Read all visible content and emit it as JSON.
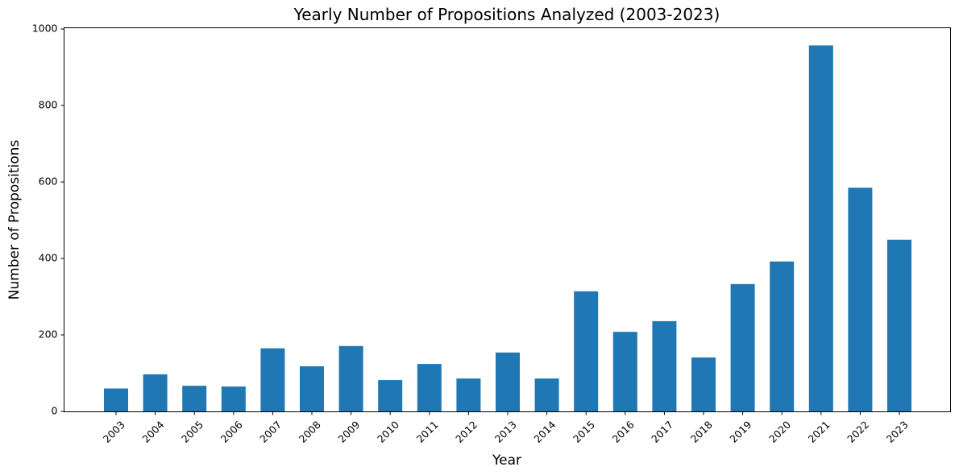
{
  "chart_data": {
    "type": "bar",
    "title": "Yearly Number of Propositions Analyzed (2003-2023)",
    "xlabel": "Year",
    "ylabel": "Number of Propositions",
    "categories": [
      "2003",
      "2004",
      "2005",
      "2006",
      "2007",
      "2008",
      "2009",
      "2010",
      "2011",
      "2012",
      "2013",
      "2014",
      "2015",
      "2016",
      "2017",
      "2018",
      "2019",
      "2020",
      "2021",
      "2022",
      "2023"
    ],
    "values": [
      60,
      97,
      67,
      65,
      165,
      118,
      171,
      82,
      124,
      86,
      154,
      86,
      314,
      208,
      236,
      141,
      333,
      392,
      957,
      585,
      449
    ],
    "ylim": [
      0,
      1000
    ],
    "yticks": [
      0,
      200,
      400,
      600,
      800,
      1000
    ],
    "bar_color": "#1f77b4",
    "grid": false,
    "legend": "none"
  }
}
